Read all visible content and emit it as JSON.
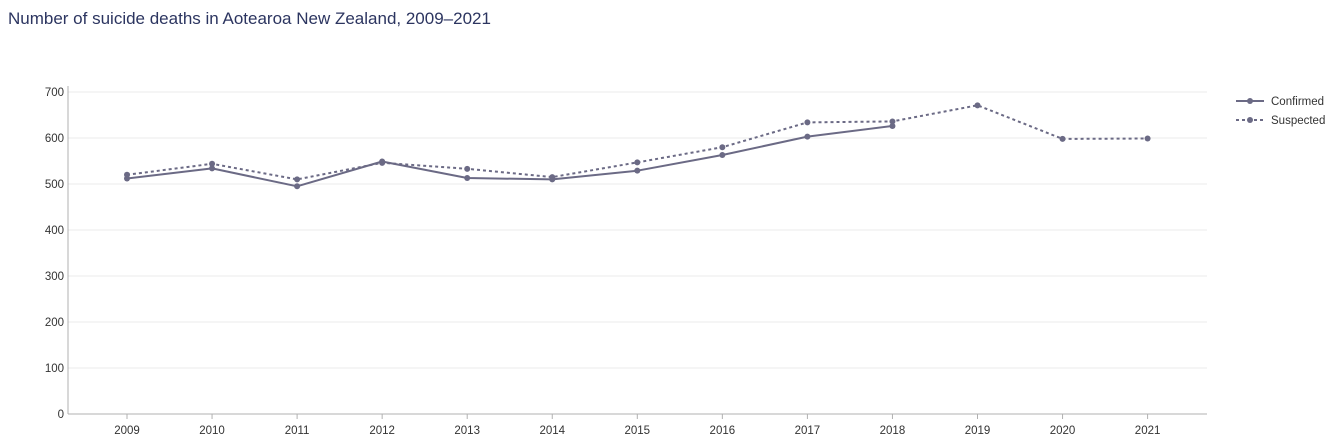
{
  "chart_data": {
    "type": "line",
    "title": "Number of suicide deaths in Aotearoa New Zealand, 2009–2021",
    "xlabel": "",
    "ylabel": "",
    "x": [
      "2009",
      "2010",
      "2011",
      "2012",
      "2013",
      "2014",
      "2015",
      "2016",
      "2017",
      "2018",
      "2019",
      "2020",
      "2021"
    ],
    "ylim": [
      0,
      700
    ],
    "yticks": [
      0,
      100,
      200,
      300,
      400,
      500,
      600,
      700
    ],
    "grid": true,
    "legend_position": "top-right",
    "series": [
      {
        "name": "Confirmed",
        "style": "solid",
        "color": "#6b6a85",
        "values": [
          512,
          534,
          495,
          549,
          513,
          510,
          529,
          563,
          603,
          626,
          null,
          null,
          null
        ]
      },
      {
        "name": "Suspected",
        "style": "dotted",
        "color": "#6b6a85",
        "values": [
          520,
          544,
          510,
          546,
          533,
          515,
          547,
          580,
          634,
          636,
          671,
          598,
          599
        ]
      }
    ]
  }
}
